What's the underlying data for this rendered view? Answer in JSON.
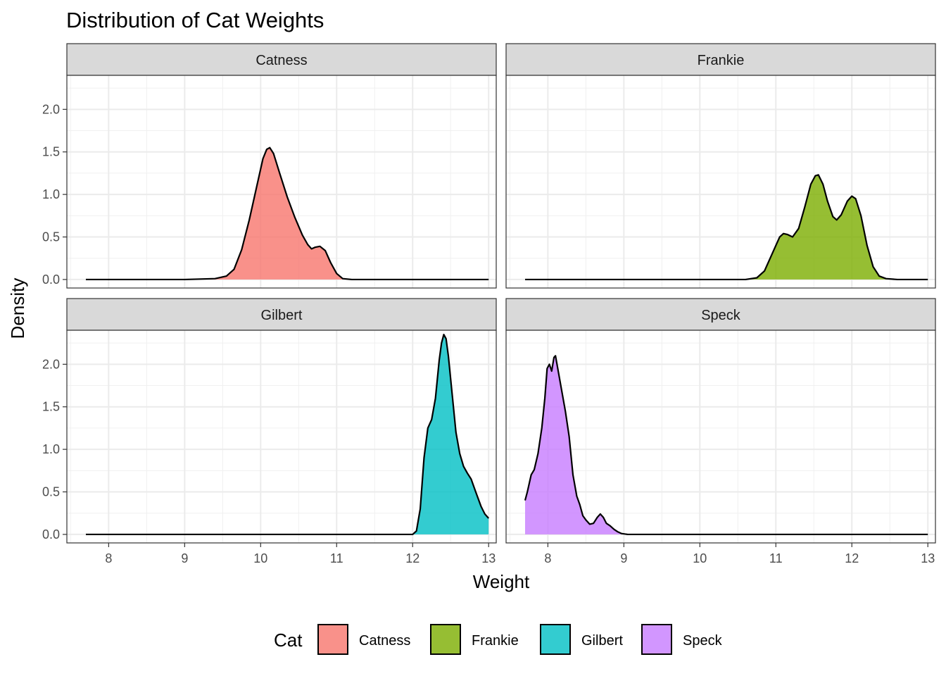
{
  "chart_data": {
    "type": "area",
    "title": "Distribution of Cat Weights",
    "xlabel": "Weight",
    "ylabel": "Density",
    "xlim": [
      7.45,
      13.1
    ],
    "ylim": [
      -0.1,
      2.4
    ],
    "x_ticks": [
      8,
      9,
      10,
      11,
      12,
      13
    ],
    "y_ticks": [
      0.0,
      0.5,
      1.0,
      1.5,
      2.0
    ],
    "y_tick_labels": [
      "0.0",
      "0.5",
      "1.0",
      "1.5",
      "2.0"
    ],
    "grid": true,
    "facet_by": "Cat",
    "legend": {
      "title": "Cat",
      "position": "bottom"
    },
    "series": [
      {
        "name": "Catness",
        "color": "#F8766D",
        "points": [
          [
            7.7,
            0
          ],
          [
            9.0,
            0
          ],
          [
            9.4,
            0.01
          ],
          [
            9.55,
            0.04
          ],
          [
            9.65,
            0.12
          ],
          [
            9.75,
            0.35
          ],
          [
            9.85,
            0.7
          ],
          [
            9.95,
            1.1
          ],
          [
            10.03,
            1.42
          ],
          [
            10.08,
            1.53
          ],
          [
            10.12,
            1.55
          ],
          [
            10.17,
            1.48
          ],
          [
            10.25,
            1.25
          ],
          [
            10.35,
            0.97
          ],
          [
            10.45,
            0.73
          ],
          [
            10.55,
            0.52
          ],
          [
            10.62,
            0.41
          ],
          [
            10.67,
            0.36
          ],
          [
            10.72,
            0.38
          ],
          [
            10.78,
            0.39
          ],
          [
            10.85,
            0.34
          ],
          [
            10.92,
            0.2
          ],
          [
            11.0,
            0.07
          ],
          [
            11.08,
            0.01
          ],
          [
            11.2,
            0
          ],
          [
            13.0,
            0
          ]
        ]
      },
      {
        "name": "Frankie",
        "color": "#7CAE00",
        "points": [
          [
            7.7,
            0
          ],
          [
            10.6,
            0
          ],
          [
            10.75,
            0.02
          ],
          [
            10.85,
            0.1
          ],
          [
            10.95,
            0.3
          ],
          [
            11.05,
            0.5
          ],
          [
            11.1,
            0.54
          ],
          [
            11.15,
            0.53
          ],
          [
            11.22,
            0.5
          ],
          [
            11.3,
            0.6
          ],
          [
            11.38,
            0.85
          ],
          [
            11.46,
            1.12
          ],
          [
            11.52,
            1.22
          ],
          [
            11.56,
            1.23
          ],
          [
            11.62,
            1.12
          ],
          [
            11.68,
            0.92
          ],
          [
            11.75,
            0.74
          ],
          [
            11.8,
            0.7
          ],
          [
            11.86,
            0.76
          ],
          [
            11.94,
            0.92
          ],
          [
            12.0,
            0.98
          ],
          [
            12.05,
            0.95
          ],
          [
            12.12,
            0.75
          ],
          [
            12.2,
            0.4
          ],
          [
            12.28,
            0.15
          ],
          [
            12.36,
            0.04
          ],
          [
            12.45,
            0.01
          ],
          [
            12.6,
            0
          ],
          [
            13.0,
            0
          ]
        ]
      },
      {
        "name": "Gilbert",
        "color": "#00BFC4",
        "points": [
          [
            7.7,
            0
          ],
          [
            12.0,
            0
          ],
          [
            12.05,
            0.04
          ],
          [
            12.1,
            0.3
          ],
          [
            12.15,
            0.9
          ],
          [
            12.2,
            1.25
          ],
          [
            12.25,
            1.35
          ],
          [
            12.3,
            1.6
          ],
          [
            12.35,
            2.05
          ],
          [
            12.38,
            2.25
          ],
          [
            12.41,
            2.35
          ],
          [
            12.44,
            2.3
          ],
          [
            12.47,
            2.1
          ],
          [
            12.52,
            1.65
          ],
          [
            12.57,
            1.2
          ],
          [
            12.62,
            0.95
          ],
          [
            12.67,
            0.8
          ],
          [
            12.72,
            0.72
          ],
          [
            12.77,
            0.65
          ],
          [
            12.83,
            0.5
          ],
          [
            12.9,
            0.33
          ],
          [
            12.95,
            0.24
          ],
          [
            13.0,
            0.19
          ]
        ]
      },
      {
        "name": "Speck",
        "color": "#C77CFF",
        "points": [
          [
            7.7,
            0.4
          ],
          [
            7.73,
            0.5
          ],
          [
            7.78,
            0.7
          ],
          [
            7.82,
            0.76
          ],
          [
            7.87,
            0.95
          ],
          [
            7.92,
            1.25
          ],
          [
            7.96,
            1.6
          ],
          [
            7.99,
            1.95
          ],
          [
            8.02,
            2.0
          ],
          [
            8.05,
            1.92
          ],
          [
            8.08,
            2.08
          ],
          [
            8.1,
            2.1
          ],
          [
            8.13,
            1.95
          ],
          [
            8.18,
            1.7
          ],
          [
            8.23,
            1.45
          ],
          [
            8.28,
            1.15
          ],
          [
            8.33,
            0.7
          ],
          [
            8.38,
            0.45
          ],
          [
            8.42,
            0.35
          ],
          [
            8.46,
            0.22
          ],
          [
            8.5,
            0.17
          ],
          [
            8.55,
            0.12
          ],
          [
            8.6,
            0.13
          ],
          [
            8.65,
            0.2
          ],
          [
            8.69,
            0.24
          ],
          [
            8.73,
            0.2
          ],
          [
            8.77,
            0.13
          ],
          [
            8.82,
            0.1
          ],
          [
            8.87,
            0.06
          ],
          [
            8.92,
            0.03
          ],
          [
            8.97,
            0.01
          ],
          [
            9.05,
            0
          ],
          [
            13.0,
            0
          ]
        ]
      }
    ]
  }
}
